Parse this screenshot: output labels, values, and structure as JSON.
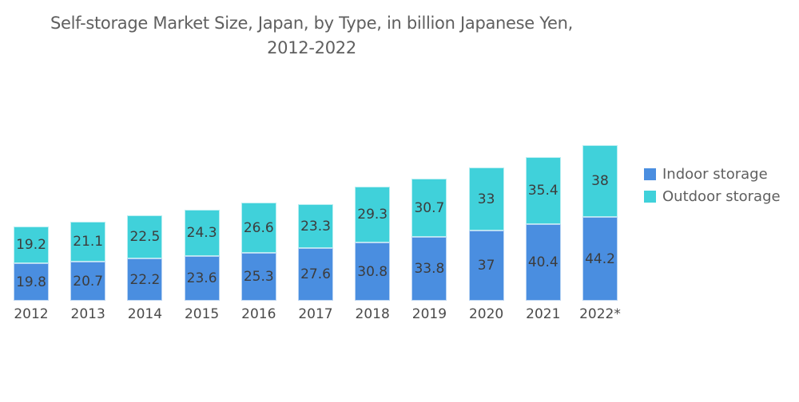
{
  "chart_data": {
    "type": "bar",
    "stacked": true,
    "title": "Self-storage Market Size, Japan, by Type, in billion Japanese Yen, 2012-2022",
    "title_lines": [
      "Self-storage Market Size, Japan, by Type, in billion Japanese Yen,",
      "2012-2022"
    ],
    "xlabel": "",
    "ylabel": "",
    "categories": [
      "2012",
      "2013",
      "2014",
      "2015",
      "2016",
      "2017",
      "2018",
      "2019",
      "2020",
      "2021",
      "2022*"
    ],
    "series": [
      {
        "name": "Indoor storage",
        "color": "#4a8ee0",
        "values": [
          19.8,
          20.7,
          22.2,
          23.6,
          25.3,
          27.6,
          30.8,
          33.8,
          37,
          40.4,
          44.2
        ]
      },
      {
        "name": "Outdoor storage",
        "color": "#40d1da",
        "values": [
          19.2,
          21.1,
          22.5,
          24.3,
          26.6,
          23.3,
          29.3,
          30.7,
          33,
          35.4,
          38
        ]
      }
    ],
    "grid": false,
    "y_axis_visible": false,
    "data_labels": true,
    "legend_position": "right"
  },
  "legend": [
    {
      "label": "Indoor storage",
      "color": "#4a8ee0"
    },
    {
      "label": "Outdoor storage",
      "color": "#40d1da"
    }
  ]
}
